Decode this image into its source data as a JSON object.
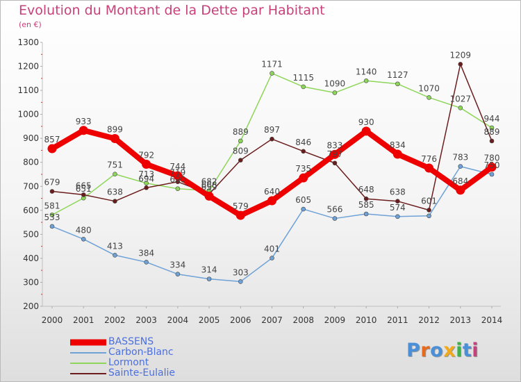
{
  "header": {
    "title": "Evolution du Montant de la Dette par Habitant",
    "subtitle": "(en €)"
  },
  "logo": {
    "text": "Proxiti",
    "colors": [
      "#4a90d9",
      "#e86a1a",
      "#4a90d9",
      "#f2a91c",
      "#3fb14a",
      "#4a90d9",
      "#c8407a"
    ]
  },
  "chart_data": {
    "type": "line",
    "title": "Evolution du Montant de la Dette par Habitant",
    "subtitle": "(en €)",
    "categories": [
      "2000",
      "2001",
      "2002",
      "2003",
      "2004",
      "2005",
      "2006",
      "2007",
      "2008",
      "2009",
      "2010",
      "2011",
      "2012",
      "2013",
      "2014"
    ],
    "ylim": [
      200,
      1300
    ],
    "yticks": [
      200,
      300,
      400,
      500,
      600,
      700,
      800,
      900,
      1000,
      1100,
      1200,
      1300
    ],
    "grid": false,
    "legend_position": "bottom-left",
    "series": [
      {
        "name": "BASSENS",
        "color": "#ee0000",
        "values": [
          857,
          933,
          899,
          792,
          744,
          659,
          579,
          640,
          735,
          833,
          930,
          834,
          776,
          684,
          780
        ],
        "labels": [
          "857",
          "933",
          "899",
          "792",
          "744",
          "659",
          "579",
          "640",
          "735",
          "833",
          "930",
          "834",
          "776",
          "684",
          "780"
        ]
      },
      {
        "name": "Carbon-Blanc",
        "color": "#6ea1d6",
        "values": [
          533,
          480,
          413,
          384,
          334,
          314,
          303,
          401,
          605,
          566,
          585,
          574,
          577,
          783,
          750
        ],
        "labels": [
          "533",
          "480",
          "413",
          "384",
          "334",
          "314",
          "303",
          "401",
          "605",
          "566",
          "585",
          "574",
          "",
          "783",
          "750"
        ]
      },
      {
        "name": "Lormont",
        "color": "#8ed65a",
        "values": [
          581,
          651,
          751,
          713,
          690,
          682,
          889,
          1171,
          1115,
          1090,
          1140,
          1127,
          1070,
          1027,
          944
        ],
        "labels": [
          "581",
          "651",
          "751",
          "713",
          "690",
          "682",
          "889",
          "1171",
          "1115",
          "1090",
          "1140",
          "1127",
          "1070",
          "1027",
          "944"
        ]
      },
      {
        "name": "Sainte-Eulalie",
        "color": "#6b1d1d",
        "values": [
          679,
          665,
          638,
          694,
          719,
          668,
          809,
          897,
          846,
          797,
          648,
          638,
          601,
          1209,
          889
        ],
        "labels": [
          "679",
          "665",
          "638",
          "694",
          "719",
          "668",
          "809",
          "897",
          "846",
          "797",
          "648",
          "638",
          "601",
          "1209",
          "889"
        ]
      }
    ]
  }
}
